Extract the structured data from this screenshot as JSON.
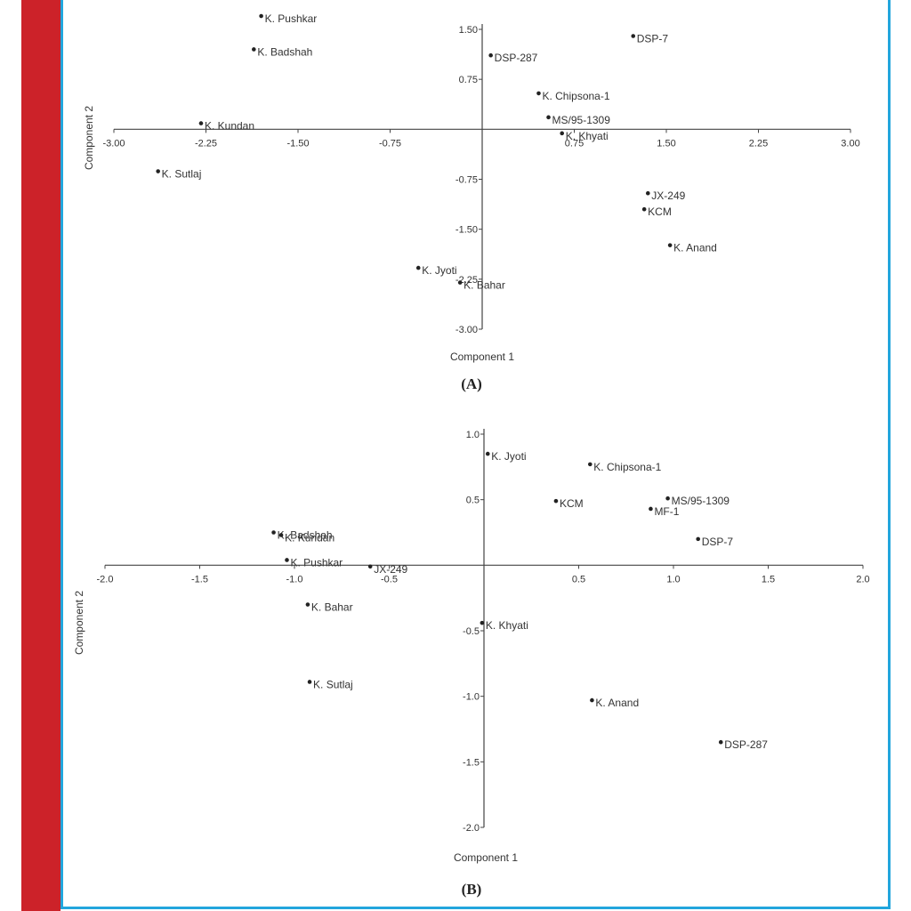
{
  "colors": {
    "accent_bar": "#cc2229",
    "frame_border": "#22a6dd"
  },
  "chart_data": [
    {
      "type": "scatter",
      "panel_label": "(A)",
      "xlabel": "Component 1",
      "ylabel": "Component 2",
      "xlim": [
        -3.0,
        3.0
      ],
      "ylim": [
        -3.0,
        1.5
      ],
      "x_ticks": [
        -3.0,
        -2.25,
        -1.5,
        -0.75,
        0.75,
        1.5,
        2.25,
        3.0
      ],
      "x_tick_labels": [
        "-3.00",
        "-2.25",
        "-1.50",
        "-0.75",
        "0.75",
        "1.50",
        "2.25",
        "3.00"
      ],
      "y_ticks": [
        1.5,
        0.75,
        -0.75,
        -1.5,
        -2.25,
        -3.0
      ],
      "y_tick_labels": [
        "1.50",
        "0.75",
        "-0.75",
        "-1.50",
        "-2.25",
        "-3.00"
      ],
      "points": [
        {
          "label": "K. Pushkar",
          "x": -1.8,
          "y": 1.7
        },
        {
          "label": "K. Badshah",
          "x": -1.86,
          "y": 1.2
        },
        {
          "label": "K. Kundan",
          "x": -2.29,
          "y": 0.09
        },
        {
          "label": "K. Sutlaj",
          "x": -2.64,
          "y": -0.63
        },
        {
          "label": "DSP-287",
          "x": 0.07,
          "y": 1.11
        },
        {
          "label": "DSP-7",
          "x": 1.23,
          "y": 1.4
        },
        {
          "label": "K. Chipsona-1",
          "x": 0.46,
          "y": 0.54
        },
        {
          "label": "MS/95-1309",
          "x": 0.54,
          "y": 0.18
        },
        {
          "label": "K. Khyati",
          "x": 0.65,
          "y": -0.06
        },
        {
          "label": "JX-249",
          "x": 1.35,
          "y": -0.96
        },
        {
          "label": "KCM",
          "x": 1.32,
          "y": -1.2
        },
        {
          "label": "K. Anand",
          "x": 1.53,
          "y": -1.74
        },
        {
          "label": "K. Jyoti",
          "x": -0.52,
          "y": -2.08
        },
        {
          "label": "K. Bahar",
          "x": -0.18,
          "y": -2.3
        }
      ]
    },
    {
      "type": "scatter",
      "panel_label": "(B)",
      "xlabel": "Component 1",
      "ylabel": "Component 2",
      "xlim": [
        -2.0,
        2.0
      ],
      "ylim": [
        -2.0,
        1.0
      ],
      "x_ticks": [
        -2.0,
        -1.5,
        -1.0,
        -0.5,
        0.5,
        1.0,
        1.5,
        2.0
      ],
      "x_tick_labels": [
        "-2.0",
        "-1.5",
        "-1.0",
        "-0.5",
        "0.5",
        "1.0",
        "1.5",
        "2.0"
      ],
      "y_ticks": [
        1.0,
        0.5,
        -0.5,
        -1.0,
        -1.5,
        -2.0
      ],
      "y_tick_labels": [
        "1.0",
        "0.5",
        "-0.5",
        "-1.0",
        "-1.5",
        "-2.0"
      ],
      "points": [
        {
          "label": "K. Jyoti",
          "x": 0.02,
          "y": 0.85
        },
        {
          "label": "K. Chipsona-1",
          "x": 0.56,
          "y": 0.77
        },
        {
          "label": "KCM",
          "x": 0.38,
          "y": 0.49
        },
        {
          "label": "MS/95-1309",
          "x": 0.97,
          "y": 0.51
        },
        {
          "label": "MF-1",
          "x": 0.88,
          "y": 0.43
        },
        {
          "label": "DSP-7",
          "x": 1.13,
          "y": 0.2
        },
        {
          "label": "K. Badshah",
          "x": -1.11,
          "y": 0.25
        },
        {
          "label": "K. Kundan",
          "x": -1.07,
          "y": 0.23
        },
        {
          "label": "K. Pushkar",
          "x": -1.04,
          "y": 0.04
        },
        {
          "label": "JX-249",
          "x": -0.6,
          "y": -0.01
        },
        {
          "label": "K. Bahar",
          "x": -0.93,
          "y": -0.3
        },
        {
          "label": "K. Khyati",
          "x": -0.01,
          "y": -0.44
        },
        {
          "label": "K. Sutlaj",
          "x": -0.92,
          "y": -0.89
        },
        {
          "label": "K. Anand",
          "x": 0.57,
          "y": -1.03
        },
        {
          "label": "DSP-287",
          "x": 1.25,
          "y": -1.35
        }
      ]
    }
  ]
}
